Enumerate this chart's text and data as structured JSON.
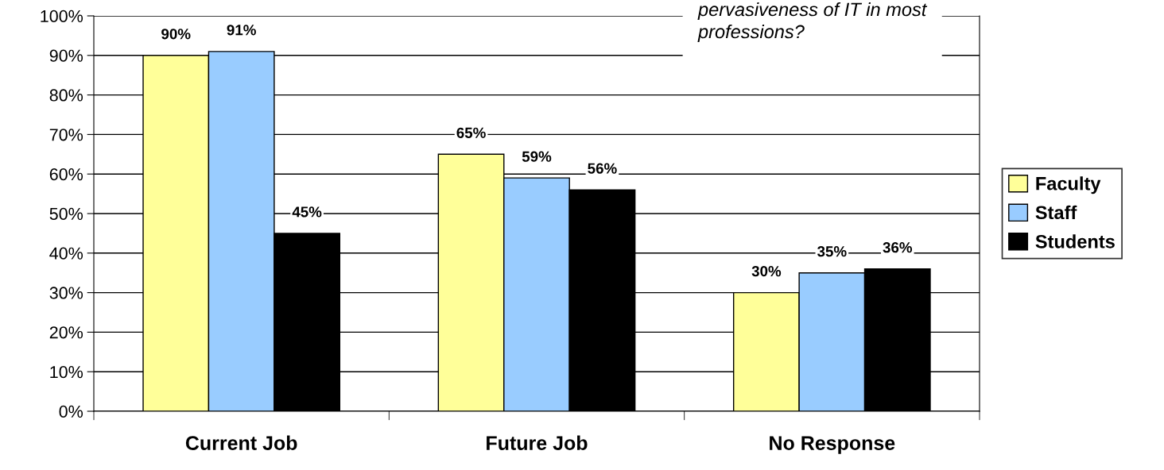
{
  "chart_data": {
    "type": "bar",
    "categories": [
      "Current Job",
      "Future Job",
      "No Response"
    ],
    "series": [
      {
        "name": "Faculty",
        "color": "#ffff99",
        "values": [
          90,
          65,
          30
        ],
        "value_labels": [
          "90%",
          "65%",
          "30%"
        ]
      },
      {
        "name": "Staff",
        "color": "#99ccff",
        "values": [
          91,
          59,
          35
        ],
        "value_labels": [
          "91%",
          "59%",
          "35%"
        ]
      },
      {
        "name": "Students",
        "color": "#000000",
        "values": [
          45,
          56,
          36
        ],
        "value_labels": [
          "45%",
          "56%",
          "36%"
        ]
      }
    ],
    "ylim": [
      0,
      100
    ],
    "yticks": [
      {
        "value": 0,
        "label": "0%"
      },
      {
        "value": 10,
        "label": "10%"
      },
      {
        "value": 20,
        "label": "20%"
      },
      {
        "value": 30,
        "label": "30%"
      },
      {
        "value": 40,
        "label": "40%"
      },
      {
        "value": 50,
        "label": "50%"
      },
      {
        "value": 60,
        "label": "60%"
      },
      {
        "value": 70,
        "label": "70%"
      },
      {
        "value": 80,
        "label": "80%"
      },
      {
        "value": 90,
        "label": "90%"
      },
      {
        "value": 100,
        "label": "100%"
      }
    ],
    "grid": "y",
    "legend": "right",
    "annotations": [
      "pervasiveness of IT in most\nprofessions?"
    ]
  }
}
